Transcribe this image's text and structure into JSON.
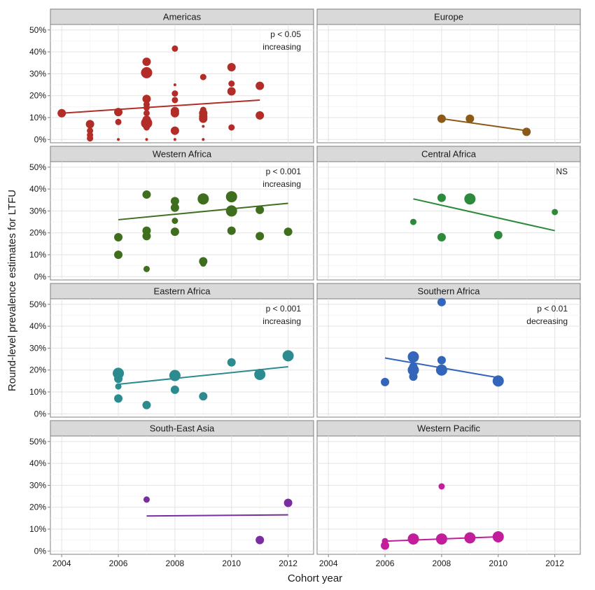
{
  "chart_data": {
    "type": "scatter",
    "xlabel": "Cohort year",
    "ylabel": "Round-level prevalence estimates for LTFU",
    "x_ticks": [
      2004,
      2006,
      2008,
      2010,
      2012
    ],
    "x_tick_labels": [
      "2004",
      "2006",
      "2008",
      "2010",
      "2012"
    ],
    "xlim": [
      2003.6,
      2012.9
    ],
    "ylim": [
      -0.015,
      0.525
    ],
    "y_ticks": [
      0,
      0.1,
      0.2,
      0.3,
      0.4,
      0.5
    ],
    "y_tick_labels": [
      "0%",
      "10%",
      "20%",
      "30%",
      "40%",
      "50%"
    ],
    "grid": true,
    "facets": [
      {
        "name": "Americas",
        "color": "#b22d28",
        "annotation": [
          "p < 0.05",
          "increasing"
        ],
        "trend": {
          "x": [
            2004,
            2011
          ],
          "y": [
            0.12,
            0.18
          ]
        },
        "points": [
          {
            "x": 2004,
            "y": 0.12,
            "size": 3
          },
          {
            "x": 2005,
            "y": 0.07,
            "size": 3
          },
          {
            "x": 2005,
            "y": 0.04,
            "size": 2
          },
          {
            "x": 2005,
            "y": 0.02,
            "size": 2
          },
          {
            "x": 2005,
            "y": 0.005,
            "size": 2
          },
          {
            "x": 2006,
            "y": 0.125,
            "size": 3
          },
          {
            "x": 2006,
            "y": 0.08,
            "size": 2
          },
          {
            "x": 2006,
            "y": 0.0,
            "size": 1
          },
          {
            "x": 2007,
            "y": 0.355,
            "size": 3
          },
          {
            "x": 2007,
            "y": 0.305,
            "size": 4
          },
          {
            "x": 2007,
            "y": 0.185,
            "size": 3
          },
          {
            "x": 2007,
            "y": 0.16,
            "size": 2
          },
          {
            "x": 2007,
            "y": 0.145,
            "size": 2
          },
          {
            "x": 2007,
            "y": 0.12,
            "size": 2
          },
          {
            "x": 2007,
            "y": 0.09,
            "size": 3
          },
          {
            "x": 2007,
            "y": 0.075,
            "size": 4
          },
          {
            "x": 2007,
            "y": 0.055,
            "size": 2
          },
          {
            "x": 2007,
            "y": 0.0,
            "size": 1
          },
          {
            "x": 2008,
            "y": 0.415,
            "size": 2
          },
          {
            "x": 2008,
            "y": 0.25,
            "size": 1
          },
          {
            "x": 2008,
            "y": 0.21,
            "size": 2
          },
          {
            "x": 2008,
            "y": 0.18,
            "size": 2
          },
          {
            "x": 2008,
            "y": 0.13,
            "size": 3
          },
          {
            "x": 2008,
            "y": 0.12,
            "size": 3
          },
          {
            "x": 2008,
            "y": 0.04,
            "size": 3
          },
          {
            "x": 2008,
            "y": 0.0,
            "size": 1
          },
          {
            "x": 2009,
            "y": 0.285,
            "size": 2
          },
          {
            "x": 2009,
            "y": 0.135,
            "size": 2
          },
          {
            "x": 2009,
            "y": 0.12,
            "size": 3
          },
          {
            "x": 2009,
            "y": 0.105,
            "size": 3
          },
          {
            "x": 2009,
            "y": 0.095,
            "size": 3
          },
          {
            "x": 2009,
            "y": 0.06,
            "size": 1
          },
          {
            "x": 2009,
            "y": 0.0,
            "size": 1
          },
          {
            "x": 2010,
            "y": 0.33,
            "size": 3
          },
          {
            "x": 2010,
            "y": 0.255,
            "size": 2
          },
          {
            "x": 2010,
            "y": 0.22,
            "size": 3
          },
          {
            "x": 2010,
            "y": 0.055,
            "size": 2
          },
          {
            "x": 2011,
            "y": 0.245,
            "size": 3
          },
          {
            "x": 2011,
            "y": 0.11,
            "size": 3
          }
        ]
      },
      {
        "name": "Europe",
        "color": "#8b5a17",
        "annotation": [],
        "trend": {
          "x": [
            2008,
            2011
          ],
          "y": [
            0.095,
            0.04
          ]
        },
        "points": [
          {
            "x": 2008,
            "y": 0.095,
            "size": 3
          },
          {
            "x": 2009,
            "y": 0.095,
            "size": 3
          },
          {
            "x": 2011,
            "y": 0.035,
            "size": 3
          }
        ]
      },
      {
        "name": "Western Africa",
        "color": "#3f6f1e",
        "annotation": [
          "p < 0.001",
          "increasing"
        ],
        "trend": {
          "x": [
            2006,
            2012
          ],
          "y": [
            0.26,
            0.335
          ]
        },
        "points": [
          {
            "x": 2006,
            "y": 0.18,
            "size": 3
          },
          {
            "x": 2006,
            "y": 0.1,
            "size": 3
          },
          {
            "x": 2007,
            "y": 0.375,
            "size": 3
          },
          {
            "x": 2007,
            "y": 0.21,
            "size": 3
          },
          {
            "x": 2007,
            "y": 0.185,
            "size": 3
          },
          {
            "x": 2007,
            "y": 0.035,
            "size": 2
          },
          {
            "x": 2008,
            "y": 0.345,
            "size": 3
          },
          {
            "x": 2008,
            "y": 0.315,
            "size": 3
          },
          {
            "x": 2008,
            "y": 0.255,
            "size": 2
          },
          {
            "x": 2008,
            "y": 0.205,
            "size": 3
          },
          {
            "x": 2009,
            "y": 0.355,
            "size": 4
          },
          {
            "x": 2009,
            "y": 0.07,
            "size": 3
          },
          {
            "x": 2009,
            "y": 0.06,
            "size": 2
          },
          {
            "x": 2010,
            "y": 0.365,
            "size": 4
          },
          {
            "x": 2010,
            "y": 0.3,
            "size": 4
          },
          {
            "x": 2010,
            "y": 0.21,
            "size": 3
          },
          {
            "x": 2011,
            "y": 0.305,
            "size": 3
          },
          {
            "x": 2011,
            "y": 0.185,
            "size": 3
          },
          {
            "x": 2012,
            "y": 0.205,
            "size": 3
          }
        ]
      },
      {
        "name": "Central Africa",
        "color": "#2c8a3a",
        "annotation": [
          "NS"
        ],
        "trend": {
          "x": [
            2007,
            2012
          ],
          "y": [
            0.355,
            0.21
          ]
        },
        "points": [
          {
            "x": 2007,
            "y": 0.25,
            "size": 2
          },
          {
            "x": 2008,
            "y": 0.36,
            "size": 3
          },
          {
            "x": 2008,
            "y": 0.18,
            "size": 3
          },
          {
            "x": 2009,
            "y": 0.355,
            "size": 4
          },
          {
            "x": 2010,
            "y": 0.19,
            "size": 3
          },
          {
            "x": 2012,
            "y": 0.295,
            "size": 2
          }
        ]
      },
      {
        "name": "Eastern Africa",
        "color": "#2b8b8f",
        "annotation": [
          "p < 0.001",
          "increasing"
        ],
        "trend": {
          "x": [
            2006,
            2012
          ],
          "y": [
            0.135,
            0.215
          ]
        },
        "points": [
          {
            "x": 2006,
            "y": 0.185,
            "size": 4
          },
          {
            "x": 2006,
            "y": 0.16,
            "size": 3
          },
          {
            "x": 2006,
            "y": 0.125,
            "size": 2
          },
          {
            "x": 2006,
            "y": 0.07,
            "size": 3
          },
          {
            "x": 2007,
            "y": 0.04,
            "size": 3
          },
          {
            "x": 2008,
            "y": 0.175,
            "size": 4
          },
          {
            "x": 2008,
            "y": 0.11,
            "size": 3
          },
          {
            "x": 2009,
            "y": 0.08,
            "size": 3
          },
          {
            "x": 2010,
            "y": 0.235,
            "size": 3
          },
          {
            "x": 2011,
            "y": 0.18,
            "size": 4
          },
          {
            "x": 2012,
            "y": 0.265,
            "size": 4
          }
        ]
      },
      {
        "name": "Southern Africa",
        "color": "#3366bb",
        "annotation": [
          "p < 0.01",
          "decreasing"
        ],
        "trend": {
          "x": [
            2006,
            2010
          ],
          "y": [
            0.255,
            0.165
          ]
        },
        "points": [
          {
            "x": 2006,
            "y": 0.145,
            "size": 3
          },
          {
            "x": 2007,
            "y": 0.26,
            "size": 4
          },
          {
            "x": 2007,
            "y": 0.215,
            "size": 3
          },
          {
            "x": 2007,
            "y": 0.2,
            "size": 4
          },
          {
            "x": 2007,
            "y": 0.17,
            "size": 3
          },
          {
            "x": 2008,
            "y": 0.51,
            "size": 3
          },
          {
            "x": 2008,
            "y": 0.245,
            "size": 3
          },
          {
            "x": 2008,
            "y": 0.2,
            "size": 4
          },
          {
            "x": 2010,
            "y": 0.15,
            "size": 4
          }
        ]
      },
      {
        "name": "South-East Asia",
        "color": "#7a2da0",
        "annotation": [],
        "trend": {
          "x": [
            2007,
            2012
          ],
          "y": [
            0.16,
            0.165
          ]
        },
        "points": [
          {
            "x": 2007,
            "y": 0.235,
            "size": 2
          },
          {
            "x": 2011,
            "y": 0.05,
            "size": 3
          },
          {
            "x": 2012,
            "y": 0.22,
            "size": 3
          }
        ]
      },
      {
        "name": "Western Pacific",
        "color": "#c21d9b",
        "annotation": [],
        "trend": {
          "x": [
            2006,
            2010
          ],
          "y": [
            0.045,
            0.065
          ]
        },
        "points": [
          {
            "x": 2006,
            "y": 0.025,
            "size": 3
          },
          {
            "x": 2006,
            "y": 0.045,
            "size": 2
          },
          {
            "x": 2007,
            "y": 0.055,
            "size": 4
          },
          {
            "x": 2008,
            "y": 0.295,
            "size": 2
          },
          {
            "x": 2008,
            "y": 0.055,
            "size": 4
          },
          {
            "x": 2009,
            "y": 0.06,
            "size": 4
          },
          {
            "x": 2010,
            "y": 0.065,
            "size": 4
          }
        ]
      }
    ]
  }
}
